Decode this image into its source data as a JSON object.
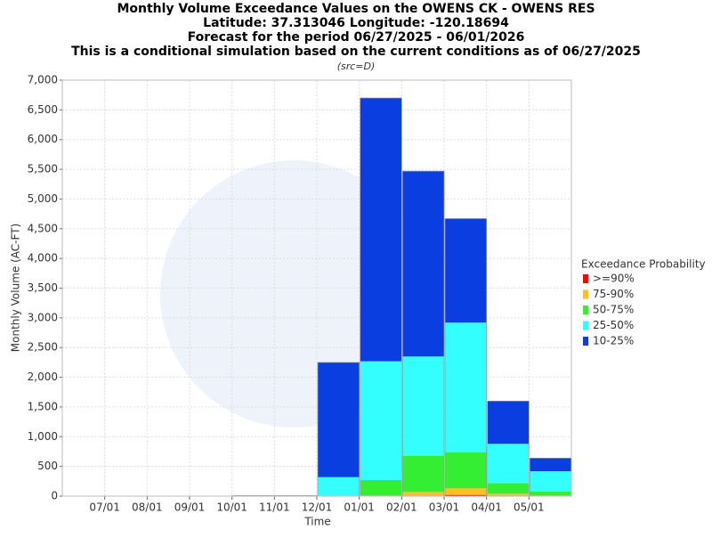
{
  "chart_data": {
    "type": "stacked-bar",
    "title": [
      "Monthly Volume Exceedance Values on the OWENS CK - OWENS RES",
      "Latitude: 37.313046 Longitude: -120.18694",
      "Forecast for the period 06/27/2025 - 06/01/2026",
      "This is a conditional simulation based on the current conditions as of 06/27/2025"
    ],
    "subtitle": "(src=D)",
    "x_label": "Time",
    "y_label": "Monthly Volume (AC-FT)",
    "legend_title": "Exceedance Probability",
    "categories": [
      null,
      "07/01",
      "08/01",
      "09/01",
      "10/01",
      "11/01",
      "12/01",
      "01/01",
      "02/01",
      "03/01",
      "04/01",
      "05/01"
    ],
    "series": [
      {
        "name": ">=90%",
        "color": "#ff0000",
        "values": [
          0,
          0,
          0,
          0,
          0,
          0,
          0,
          0,
          10,
          20,
          10,
          0
        ]
      },
      {
        "name": "75-90%",
        "color": "#ffc020",
        "values": [
          0,
          0,
          0,
          0,
          0,
          0,
          0,
          10,
          60,
          110,
          30,
          10
        ]
      },
      {
        "name": "50-75%",
        "color": "#33ee33",
        "values": [
          0,
          0,
          0,
          0,
          0,
          0,
          10,
          260,
          610,
          610,
          180,
          70
        ]
      },
      {
        "name": "25-50%",
        "color": "#33ffff",
        "values": [
          0,
          0,
          0,
          0,
          5,
          5,
          310,
          2000,
          1670,
          2180,
          660,
          340
        ]
      },
      {
        "name": "10-25%",
        "color": "#0a3ee0",
        "values": [
          0,
          0,
          0,
          0,
          5,
          5,
          1930,
          4430,
          3120,
          1750,
          720,
          220
        ]
      }
    ],
    "ylim": [
      0,
      7000
    ],
    "yticks": [
      0,
      500,
      {
        "value": 1000,
        "label": "1,000"
      },
      {
        "value": 1500,
        "label": "1,500"
      },
      {
        "value": 2000,
        "label": "2,000"
      },
      {
        "value": 2500,
        "label": "2,500"
      },
      {
        "value": 3000,
        "label": "3,000"
      },
      {
        "value": 3500,
        "label": "3,500"
      },
      {
        "value": 4000,
        "label": "4,000"
      },
      {
        "value": 4500,
        "label": "4,500"
      },
      {
        "value": 5000,
        "label": "5,000"
      },
      {
        "value": 5500,
        "label": "5,500"
      },
      {
        "value": 6000,
        "label": "6,000"
      },
      {
        "value": 6500,
        "label": "6,500"
      },
      {
        "value": 7000,
        "label": "7,000"
      }
    ],
    "grid": true
  }
}
